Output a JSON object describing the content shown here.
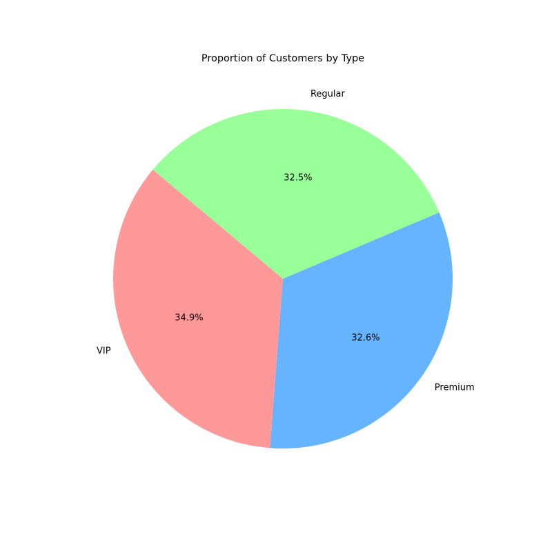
{
  "chart_data": {
    "type": "pie",
    "title": "Proportion of Customers by Type",
    "start_angle_deg": 140,
    "direction": "counterclockwise",
    "slices": [
      {
        "label": "VIP",
        "value": 34.9,
        "pct_label": "34.9%",
        "color": "#ff9999"
      },
      {
        "label": "Premium",
        "value": 32.6,
        "pct_label": "32.6%",
        "color": "#66b3ff"
      },
      {
        "label": "Regular",
        "value": 32.5,
        "pct_label": "32.5%",
        "color": "#99ff99"
      }
    ]
  }
}
